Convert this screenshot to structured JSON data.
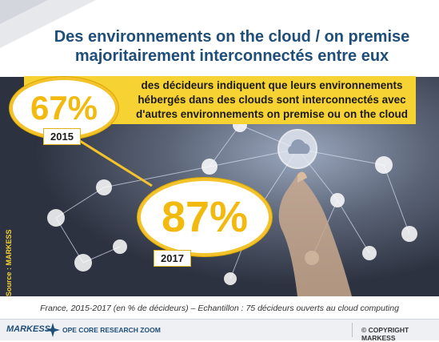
{
  "title": {
    "line1": "Des environnements on the cloud / on premise",
    "line2": "majoritairement interconnectés entre eux"
  },
  "band": {
    "line1": "des décideurs indiquent que leurs environnements",
    "line2": "hébergés dans des clouds sont interconnectés avec",
    "line3": "d'autres environnements on premise ou on the cloud"
  },
  "stats": [
    {
      "value": "67%",
      "year": "2015"
    },
    {
      "value": "87%",
      "year": "2017"
    }
  ],
  "source": "Source : MARKESS",
  "caption": "France, 2015-2017 (en % de décideurs) – Echantillon : 75 décideurs ouverts au cloud computing",
  "footer": {
    "brand": "MARKESS",
    "zoom": "OPE CORE RESEARCH ZOOM",
    "copyright": "© COPYRIGHT MARKESS"
  },
  "icons": [
    "cloud-icon",
    "camera-icon",
    "video-icon",
    "phone-icon",
    "share-icon",
    "music-icon",
    "org-chart-icon",
    "briefcase-icon",
    "cart-icon",
    "gift-icon",
    "wifi-icon",
    "coffee-icon",
    "location-arrow-icon",
    "envelope-icon",
    "hand-image"
  ],
  "colors": {
    "accent": "#f7d233",
    "title": "#1f4e79",
    "stat": "#f2b90f"
  }
}
